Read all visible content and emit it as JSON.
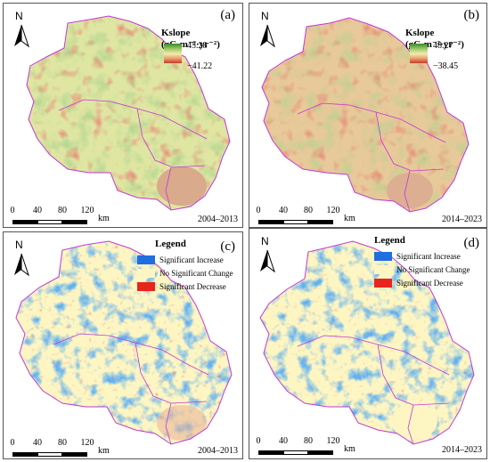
{
  "panels": [
    {
      "label": "(a)",
      "period": "2004–2013",
      "legend_title": "Kslope (gC·m⁻²·yr⁻²)",
      "max": "45.28",
      "min": "−41.22"
    },
    {
      "label": "(b)",
      "period": "2014–2023",
      "legend_title": "Kslope (gC·m⁻²·yr⁻²)",
      "max": "48.27",
      "min": "−38.45"
    },
    {
      "label": "(c)",
      "period": "2004–2013",
      "legend_title": "Legend"
    },
    {
      "label": "(d)",
      "period": "2014–2023",
      "legend_title": "Legend"
    }
  ],
  "categories": [
    "Significant Increase",
    "No Significant Change",
    "Significant Decrease"
  ],
  "colors": {
    "increase": "#1f6fe0",
    "no_change": "#fdf6c3",
    "decrease": "#e8251c",
    "boundary": "#c239d6",
    "green": "#6fae4a",
    "red": "#c9503a"
  },
  "north": "N",
  "scale": {
    "ticks": [
      "0",
      "40",
      "80",
      "120"
    ],
    "unit": "km"
  }
}
